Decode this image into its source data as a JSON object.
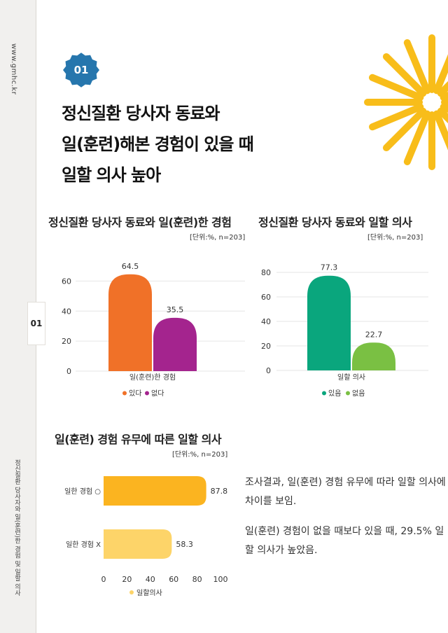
{
  "sidebar": {
    "website": "www.gmhc.kr",
    "section_number": "01",
    "doc_title": "정신질환 당사자와 일(훈련)한 경험 및 일할 의사"
  },
  "section": {
    "badge": "01",
    "headline_lines": [
      "정신질환 당사자 동료와",
      "일(훈련)해본 경험이 있을 때",
      "일할 의사 높아"
    ]
  },
  "colors": {
    "badge": "#2676ad",
    "sun": "#f8bd1a",
    "orange": "#f07128",
    "purple": "#a4248e",
    "teal": "#0aa67d",
    "green": "#7ac043",
    "gold": "#fbb420",
    "lightgold": "#fdd469"
  },
  "charts": {
    "c1": {
      "title": "정신질환 당사자 동료와 일(훈련)한 경험",
      "unit": "[단위:%, n=203]"
    },
    "c2": {
      "title": "정신질환 당사자 동료와 일할 의사",
      "unit": "[단위:%, n=203]"
    },
    "c3": {
      "title": "일(훈련) 경험 유무에 따른 일할 의사",
      "unit": "[단위:%, n=203]"
    }
  },
  "chart_data": [
    {
      "type": "bar",
      "title": "정신질환 당사자 동료와 일(훈련)한 경험",
      "categories": [
        "일(훈련)한 경험"
      ],
      "series": [
        {
          "name": "있다",
          "values": [
            64.5
          ],
          "color": "#f07128"
        },
        {
          "name": "없다",
          "values": [
            35.5
          ],
          "color": "#a4248e"
        }
      ],
      "ylim": [
        0,
        70
      ],
      "yticks": [
        0,
        20,
        40,
        60
      ],
      "legend": "bottom"
    },
    {
      "type": "bar",
      "title": "정신질환 당사자 동료와 일할 의사",
      "categories": [
        "일할 의사"
      ],
      "series": [
        {
          "name": "있음",
          "values": [
            77.3
          ],
          "color": "#0aa67d"
        },
        {
          "name": "없음",
          "values": [
            22.7
          ],
          "color": "#7ac043"
        }
      ],
      "ylim": [
        0,
        80
      ],
      "yticks": [
        0,
        20,
        40,
        60,
        80
      ],
      "legend": "bottom"
    },
    {
      "type": "bar",
      "orientation": "horizontal",
      "title": "일(훈련) 경험 유무에 따른 일할 의사",
      "categories": [
        "일한 경험 ○",
        "일한 경험 X"
      ],
      "series": [
        {
          "name": "일할의사",
          "values": [
            87.8,
            58.3
          ],
          "colors": [
            "#fbb420",
            "#fdd469"
          ]
        }
      ],
      "xlim": [
        0,
        100
      ],
      "xticks": [
        0,
        20,
        40,
        60,
        80,
        100
      ],
      "legend": "bottom"
    }
  ],
  "notes": [
    "조사결과, 일(훈련) 경험 유무에 따라 일할 의사에 차이를 보임.",
    "일(훈련) 경험이 없을 때보다 있을 때, 29.5% 일할 의사가 높았음."
  ]
}
